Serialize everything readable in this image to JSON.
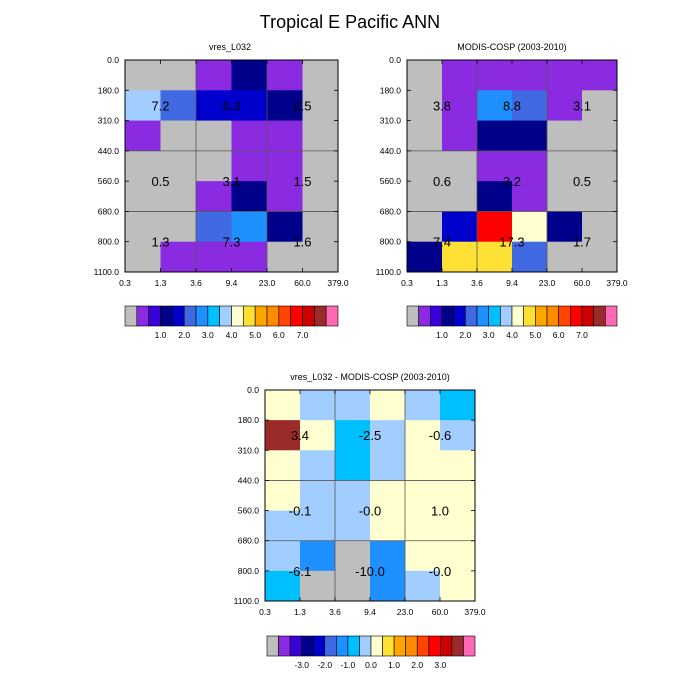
{
  "title": "Tropical E Pacific ANN",
  "palette": {
    "colors": [
      "#bebebe",
      "#8a2be2",
      "#3a00d8",
      "#00008b",
      "#0000cd",
      "#4169e1",
      "#1e90ff",
      "#00bfff",
      "#a2cdff",
      "#ffffd0",
      "#ffe135",
      "#ffa500",
      "#ff8c00",
      "#ff4500",
      "#ff0000",
      "#cd0000",
      "#9b2a2a",
      "#ff69b4"
    ],
    "notes": "index 0 = gray (no data / below first level)"
  },
  "chart_data": [
    {
      "type": "heatmap",
      "title": "vres_L032",
      "x_ticks": [
        "0.3",
        "1.3",
        "3.6",
        "9.4",
        "23.0",
        "60.0",
        "379.0"
      ],
      "y_ticks": [
        "0.0",
        "180.0",
        "310.0",
        "440.0",
        "560.0",
        "680.0",
        "800.0",
        "1100.0"
      ],
      "grid": true,
      "cell_color_index": [
        [
          0,
          0,
          1,
          3,
          1,
          0
        ],
        [
          8,
          5,
          4,
          4,
          3,
          0
        ],
        [
          1,
          0,
          0,
          1,
          1,
          0
        ],
        [
          0,
          0,
          0,
          1,
          1,
          0
        ],
        [
          0,
          0,
          1,
          3,
          1,
          0
        ],
        [
          0,
          0,
          5,
          6,
          3,
          0
        ],
        [
          0,
          1,
          1,
          1,
          0,
          0
        ]
      ],
      "block_labels": [
        [
          "7.2",
          "6.3",
          "2.5"
        ],
        [
          "0.5",
          "3.1",
          "1.5"
        ],
        [
          "1.3",
          "7.3",
          "1.6"
        ]
      ],
      "colorbar_labels": [
        "1.0",
        "2.0",
        "3.0",
        "4.0",
        "5.0",
        "6.0",
        "7.0"
      ]
    },
    {
      "type": "heatmap",
      "title": "MODIS-COSP (2003-2010)",
      "x_ticks": [
        "0.3",
        "1.3",
        "3.6",
        "9.4",
        "23.0",
        "60.0",
        "379.0"
      ],
      "y_ticks": [
        "0.0",
        "180.0",
        "310.0",
        "440.0",
        "560.0",
        "680.0",
        "800.0",
        "1100.0"
      ],
      "grid": true,
      "cell_color_index": [
        [
          0,
          1,
          1,
          1,
          1,
          1
        ],
        [
          0,
          1,
          6,
          5,
          1,
          0
        ],
        [
          0,
          1,
          3,
          3,
          0,
          0
        ],
        [
          0,
          0,
          1,
          1,
          0,
          0
        ],
        [
          0,
          0,
          3,
          1,
          0,
          0
        ],
        [
          0,
          4,
          14,
          9,
          3,
          0
        ],
        [
          3,
          10,
          10,
          5,
          0,
          0
        ]
      ],
      "block_labels": [
        [
          "3.8",
          "8.8",
          "3.1"
        ],
        [
          "0.6",
          "3.2",
          "0.5"
        ],
        [
          "7.4",
          "17.3",
          "1.7"
        ]
      ],
      "colorbar_labels": [
        "1.0",
        "2.0",
        "3.0",
        "4.0",
        "5.0",
        "6.0",
        "7.0"
      ]
    },
    {
      "type": "heatmap",
      "title": "vres_L032 - MODIS-COSP (2003-2010)",
      "x_ticks": [
        "0.3",
        "1.3",
        "3.6",
        "9.4",
        "23.0",
        "60.0",
        "379.0"
      ],
      "y_ticks": [
        "0.0",
        "180.0",
        "310.0",
        "440.0",
        "560.0",
        "680.0",
        "800.0",
        "1100.0"
      ],
      "grid": true,
      "cell_color_index": [
        [
          9,
          8,
          8,
          9,
          8,
          7
        ],
        [
          16,
          9,
          7,
          8,
          9,
          8
        ],
        [
          9,
          8,
          7,
          8,
          9,
          9
        ],
        [
          9,
          8,
          8,
          9,
          9,
          9
        ],
        [
          8,
          8,
          8,
          9,
          9,
          9
        ],
        [
          8,
          6,
          0,
          6,
          9,
          9
        ],
        [
          7,
          0,
          0,
          6,
          8,
          9
        ]
      ],
      "block_labels": [
        [
          "3.4",
          "-2.5",
          "-0.6"
        ],
        [
          "-0.1",
          "-0.0",
          "1.0"
        ],
        [
          "-6.1",
          "-10.0",
          "-0.0"
        ]
      ],
      "colorbar_labels": [
        "-3.0",
        "-2.0",
        "-1.0",
        "0.0",
        "1.0",
        "2.0",
        "3.0"
      ]
    }
  ]
}
